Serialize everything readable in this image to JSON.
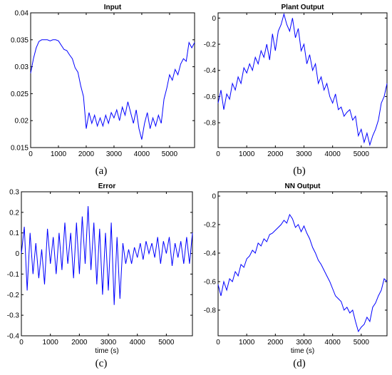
{
  "chart_data": [
    {
      "type": "line",
      "title": "Input",
      "panel_label": "(a)",
      "xlabel": "",
      "ylabel": "",
      "xlim": [
        0,
        5900
      ],
      "ylim": [
        0.015,
        0.04
      ],
      "xticks": [
        "0",
        "1000",
        "2000",
        "3000",
        "4000",
        "5000"
      ],
      "yticks": [
        "0.015",
        "0.02",
        "0.025",
        "0.03",
        "0.035",
        "0.04"
      ],
      "grid": false,
      "color": "#0000ff",
      "x": [
        0,
        100,
        200,
        300,
        400,
        500,
        600,
        700,
        800,
        900,
        1000,
        1100,
        1200,
        1300,
        1400,
        1500,
        1600,
        1700,
        1800,
        1900,
        2000,
        2100,
        2200,
        2300,
        2400,
        2500,
        2600,
        2700,
        2800,
        2900,
        3000,
        3100,
        3200,
        3300,
        3400,
        3500,
        3600,
        3700,
        3800,
        3900,
        4000,
        4100,
        4200,
        4300,
        4400,
        4500,
        4600,
        4700,
        4800,
        4900,
        5000,
        5100,
        5200,
        5300,
        5400,
        5500,
        5600,
        5700,
        5800,
        5900
      ],
      "y": [
        0.0288,
        0.0315,
        0.0335,
        0.0347,
        0.035,
        0.035,
        0.035,
        0.0348,
        0.035,
        0.035,
        0.0348,
        0.034,
        0.0332,
        0.033,
        0.0322,
        0.0315,
        0.0298,
        0.029,
        0.0265,
        0.0245,
        0.0185,
        0.0215,
        0.0195,
        0.021,
        0.019,
        0.0205,
        0.019,
        0.021,
        0.0195,
        0.0215,
        0.0205,
        0.022,
        0.02,
        0.0225,
        0.021,
        0.0235,
        0.0215,
        0.0195,
        0.022,
        0.0185,
        0.0165,
        0.0195,
        0.0215,
        0.0185,
        0.0205,
        0.019,
        0.021,
        0.0195,
        0.024,
        0.026,
        0.0285,
        0.0275,
        0.0295,
        0.0285,
        0.0305,
        0.0315,
        0.031,
        0.0345,
        0.0335,
        0.0345
      ]
    },
    {
      "type": "line",
      "title": "Plant Output",
      "panel_label": "(b)",
      "xlabel": "",
      "ylabel": "",
      "xlim": [
        0,
        5900
      ],
      "ylim": [
        -0.99,
        0.04
      ],
      "xticks": [
        "0",
        "1000",
        "2000",
        "3000",
        "4000",
        "5000"
      ],
      "yticks": [
        "-0.8",
        "-0.6",
        "-0.4",
        "-0.2",
        "0"
      ],
      "grid": false,
      "color": "#0000ff",
      "x": [
        0,
        100,
        200,
        300,
        400,
        500,
        600,
        700,
        800,
        900,
        1000,
        1100,
        1200,
        1300,
        1400,
        1500,
        1600,
        1700,
        1800,
        1900,
        2000,
        2100,
        2200,
        2300,
        2400,
        2500,
        2600,
        2700,
        2800,
        2900,
        3000,
        3100,
        3200,
        3300,
        3400,
        3500,
        3600,
        3700,
        3800,
        3900,
        4000,
        4100,
        4200,
        4300,
        4400,
        4500,
        4600,
        4700,
        4800,
        4900,
        5000,
        5100,
        5200,
        5300,
        5400,
        5500,
        5600,
        5700,
        5800,
        5900
      ],
      "y": [
        -0.65,
        -0.55,
        -0.7,
        -0.58,
        -0.62,
        -0.5,
        -0.55,
        -0.45,
        -0.5,
        -0.38,
        -0.42,
        -0.35,
        -0.4,
        -0.3,
        -0.35,
        -0.25,
        -0.3,
        -0.2,
        -0.32,
        -0.12,
        -0.25,
        -0.1,
        -0.05,
        0.03,
        -0.05,
        -0.1,
        0.0,
        -0.15,
        -0.08,
        -0.25,
        -0.2,
        -0.35,
        -0.28,
        -0.4,
        -0.35,
        -0.5,
        -0.45,
        -0.55,
        -0.5,
        -0.6,
        -0.65,
        -0.58,
        -0.7,
        -0.68,
        -0.75,
        -0.72,
        -0.7,
        -0.78,
        -0.75,
        -0.9,
        -0.85,
        -0.95,
        -0.88,
        -0.97,
        -0.9,
        -0.85,
        -0.78,
        -0.65,
        -0.6,
        -0.5
      ]
    },
    {
      "type": "line",
      "title": "Error",
      "panel_label": "(c)",
      "xlabel": "time (s)",
      "ylabel": "",
      "xlim": [
        0,
        5900
      ],
      "ylim": [
        -0.4,
        0.3
      ],
      "xticks": [
        "0",
        "1000",
        "2000",
        "3000",
        "4000",
        "5000"
      ],
      "yticks": [
        "-0.4",
        "-0.3",
        "-0.2",
        "-0.1",
        "0",
        "0.1",
        "0.2",
        "0.3"
      ],
      "grid": false,
      "color": "#0000ff",
      "x": [
        0,
        100,
        200,
        300,
        400,
        500,
        600,
        700,
        800,
        900,
        1000,
        1100,
        1200,
        1300,
        1400,
        1500,
        1600,
        1700,
        1800,
        1900,
        2000,
        2100,
        2200,
        2300,
        2400,
        2500,
        2600,
        2700,
        2800,
        2900,
        3000,
        3100,
        3200,
        3300,
        3400,
        3500,
        3600,
        3700,
        3800,
        3900,
        4000,
        4100,
        4200,
        4300,
        4400,
        4500,
        4600,
        4700,
        4800,
        4900,
        5000,
        5100,
        5200,
        5300,
        5400,
        5500,
        5600,
        5700,
        5800,
        5900
      ],
      "y": [
        0.0,
        0.13,
        -0.18,
        0.1,
        -0.1,
        0.05,
        -0.12,
        0.02,
        -0.15,
        0.12,
        -0.05,
        0.08,
        -0.1,
        0.1,
        -0.08,
        0.15,
        -0.05,
        0.1,
        -0.12,
        0.15,
        -0.1,
        0.18,
        -0.05,
        0.23,
        -0.08,
        0.15,
        -0.15,
        0.12,
        -0.2,
        0.1,
        -0.18,
        0.15,
        -0.25,
        0.08,
        -0.22,
        0.05,
        -0.05,
        0.02,
        -0.05,
        0.03,
        -0.02,
        0.05,
        -0.03,
        0.06,
        0.0,
        0.05,
        -0.02,
        0.08,
        -0.05,
        0.06,
        0.0,
        0.08,
        -0.06,
        0.05,
        -0.02,
        0.06,
        -0.05,
        0.08,
        -0.05,
        0.1
      ]
    },
    {
      "type": "line",
      "title": "NN Output",
      "panel_label": "(d)",
      "xlabel": "time (s)",
      "ylabel": "",
      "xlim": [
        0,
        5900
      ],
      "ylim": [
        -0.98,
        0.03
      ],
      "xticks": [
        "0",
        "1000",
        "2000",
        "3000",
        "4000",
        "5000"
      ],
      "yticks": [
        "-0.8",
        "-0.6",
        "-0.4",
        "-0.2",
        "0"
      ],
      "grid": false,
      "color": "#0000ff",
      "x": [
        0,
        100,
        200,
        300,
        400,
        500,
        600,
        700,
        800,
        900,
        1000,
        1100,
        1200,
        1300,
        1400,
        1500,
        1600,
        1700,
        1800,
        1900,
        2000,
        2100,
        2200,
        2300,
        2400,
        2500,
        2600,
        2700,
        2800,
        2900,
        3000,
        3100,
        3200,
        3300,
        3400,
        3500,
        3600,
        3700,
        3800,
        3900,
        4000,
        4100,
        4200,
        4300,
        4400,
        4500,
        4600,
        4700,
        4800,
        4900,
        5000,
        5100,
        5200,
        5300,
        5400,
        5500,
        5600,
        5700,
        5800,
        5900
      ],
      "y": [
        -0.62,
        -0.7,
        -0.6,
        -0.66,
        -0.58,
        -0.6,
        -0.53,
        -0.56,
        -0.48,
        -0.5,
        -0.44,
        -0.42,
        -0.38,
        -0.4,
        -0.33,
        -0.35,
        -0.3,
        -0.32,
        -0.27,
        -0.26,
        -0.24,
        -0.22,
        -0.2,
        -0.17,
        -0.19,
        -0.13,
        -0.16,
        -0.22,
        -0.2,
        -0.25,
        -0.21,
        -0.26,
        -0.3,
        -0.36,
        -0.4,
        -0.45,
        -0.48,
        -0.52,
        -0.56,
        -0.6,
        -0.65,
        -0.7,
        -0.72,
        -0.74,
        -0.8,
        -0.78,
        -0.82,
        -0.8,
        -0.88,
        -0.95,
        -0.92,
        -0.9,
        -0.85,
        -0.88,
        -0.78,
        -0.75,
        -0.7,
        -0.66,
        -0.58,
        -0.6
      ]
    }
  ]
}
